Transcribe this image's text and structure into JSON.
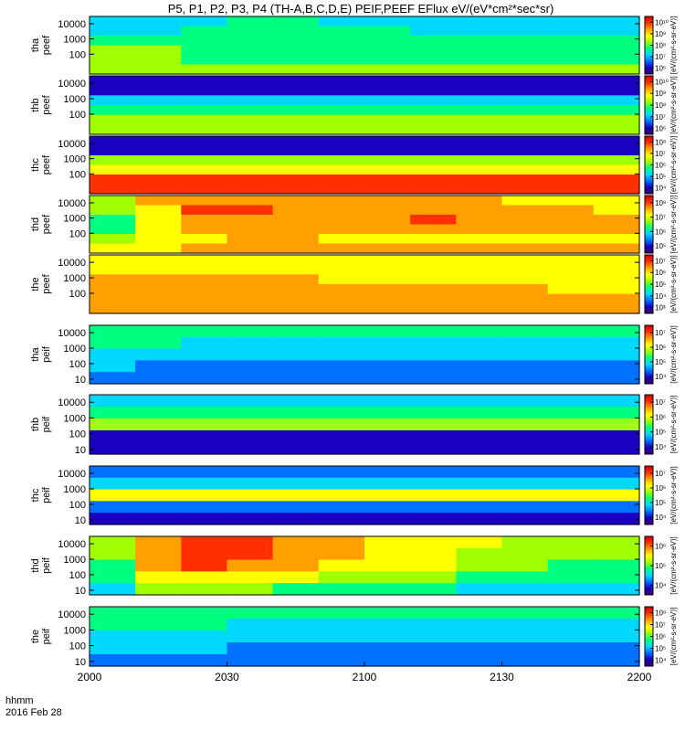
{
  "title": "P5, P1, P2, P3, P4 (TH-A,B,C,D,E) PEIF,PEEF EFlux eV/(eV*cm²*sec*sr)",
  "footer": {
    "time_label": "hhmm",
    "date_label": "2016 Feb 28"
  },
  "chart_data": [
    {
      "type": "heatmap",
      "ylabel": [
        "tha",
        "peef"
      ],
      "ylim": [
        5,
        30000
      ],
      "y_scale": "log",
      "yticks": [
        "100",
        "1000",
        "10000"
      ],
      "cbar_ticks": [
        "10⁶",
        "10⁷",
        "10⁸",
        "10⁹",
        "10¹⁰"
      ],
      "cbar_label": "[eV/(cm²-s-sr-eV)]",
      "data": [
        [
          0.3,
          0.34,
          0.38,
          0.4,
          0.4,
          0.38,
          0.36,
          0.35,
          0.34,
          0.33,
          0.32,
          0.31
        ],
        [
          0.36,
          0.38,
          0.4,
          0.42,
          0.44,
          0.42,
          0.4,
          0.38,
          0.36,
          0.35,
          0.34,
          0.33
        ],
        [
          0.48,
          0.46,
          0.44,
          0.44,
          0.45,
          0.44,
          0.43,
          0.42,
          0.41,
          0.4,
          0.4,
          0.39
        ],
        [
          0.52,
          0.5,
          0.48,
          0.47,
          0.47,
          0.46,
          0.45,
          0.44,
          0.43,
          0.43,
          0.42,
          0.42
        ],
        [
          0.52,
          0.5,
          0.48,
          0.48,
          0.48,
          0.47,
          0.46,
          0.46,
          0.45,
          0.45,
          0.44,
          0.44
        ],
        [
          0.56,
          0.55,
          0.54,
          0.54,
          0.54,
          0.53,
          0.52,
          0.52,
          0.51,
          0.51,
          0.5,
          0.5
        ]
      ]
    },
    {
      "type": "heatmap",
      "ylabel": [
        "thb",
        "peef"
      ],
      "ylim": [
        5,
        30000
      ],
      "y_scale": "log",
      "yticks": [
        "100",
        "1000",
        "10000"
      ],
      "cbar_ticks": [
        "10⁶",
        "10⁷",
        "10⁸",
        "10⁹",
        "10¹⁰"
      ],
      "cbar_label": "[eV/(cm²-s-sr-eV)]",
      "data": [
        [
          0.08,
          0.08,
          0.08,
          0.08,
          0.08,
          0.08,
          0.08,
          0.08,
          0.08,
          0.08,
          0.08,
          0.08
        ],
        [
          0.1,
          0.1,
          0.1,
          0.1,
          0.1,
          0.1,
          0.1,
          0.1,
          0.1,
          0.1,
          0.1,
          0.1
        ],
        [
          0.36,
          0.36,
          0.36,
          0.36,
          0.36,
          0.36,
          0.36,
          0.36,
          0.36,
          0.36,
          0.36,
          0.36
        ],
        [
          0.45,
          0.45,
          0.45,
          0.45,
          0.45,
          0.45,
          0.45,
          0.45,
          0.45,
          0.45,
          0.45,
          0.45
        ],
        [
          0.5,
          0.5,
          0.5,
          0.5,
          0.5,
          0.5,
          0.5,
          0.5,
          0.5,
          0.5,
          0.5,
          0.5
        ],
        [
          0.6,
          0.6,
          0.6,
          0.6,
          0.6,
          0.6,
          0.6,
          0.6,
          0.6,
          0.6,
          0.6,
          0.6
        ]
      ]
    },
    {
      "type": "heatmap",
      "ylabel": [
        "thc",
        "peef"
      ],
      "ylim": [
        5,
        30000
      ],
      "y_scale": "log",
      "yticks": [
        "100",
        "1000",
        "10000"
      ],
      "cbar_ticks": [
        "10⁴",
        "10⁵",
        "10⁶",
        "10⁷",
        "10⁸"
      ],
      "cbar_label": "[eV/(cm²-s-sr-eV)]",
      "data": [
        [
          0.12,
          0.12,
          0.12,
          0.12,
          0.12,
          0.12,
          0.12,
          0.12,
          0.12,
          0.12,
          0.12,
          0.12
        ],
        [
          0.14,
          0.14,
          0.14,
          0.14,
          0.14,
          0.14,
          0.14,
          0.14,
          0.14,
          0.14,
          0.14,
          0.14
        ],
        [
          0.5,
          0.5,
          0.5,
          0.5,
          0.5,
          0.5,
          0.5,
          0.5,
          0.5,
          0.5,
          0.5,
          0.5
        ],
        [
          0.72,
          0.72,
          0.72,
          0.72,
          0.72,
          0.72,
          0.72,
          0.72,
          0.72,
          0.72,
          0.72,
          0.72
        ],
        [
          0.86,
          0.86,
          0.86,
          0.86,
          0.86,
          0.86,
          0.86,
          0.86,
          0.86,
          0.86,
          0.86,
          0.86
        ],
        [
          0.93,
          0.93,
          0.93,
          0.93,
          0.93,
          0.93,
          0.93,
          0.93,
          0.93,
          0.93,
          0.93,
          0.93
        ]
      ]
    },
    {
      "type": "heatmap",
      "ylabel": [
        "thd",
        "peef"
      ],
      "ylim": [
        5,
        30000
      ],
      "y_scale": "log",
      "yticks": [
        "100",
        "1000",
        "10000"
      ],
      "cbar_ticks": [
        "10⁵",
        "10⁶",
        "10⁷",
        "10⁸"
      ],
      "cbar_label": "[eV/(cm²-s-sr-eV)]",
      "data": [
        [
          0.6,
          0.75,
          0.82,
          0.82,
          0.8,
          0.78,
          0.76,
          0.74,
          0.73,
          0.72,
          0.71,
          0.7
        ],
        [
          0.5,
          0.72,
          0.84,
          0.85,
          0.82,
          0.79,
          0.8,
          0.82,
          0.77,
          0.74,
          0.73,
          0.72
        ],
        [
          0.45,
          0.7,
          0.82,
          0.82,
          0.8,
          0.78,
          0.82,
          0.84,
          0.78,
          0.75,
          0.74,
          0.73
        ],
        [
          0.48,
          0.66,
          0.78,
          0.78,
          0.76,
          0.75,
          0.76,
          0.77,
          0.75,
          0.74,
          0.73,
          0.73
        ],
        [
          0.55,
          0.62,
          0.72,
          0.74,
          0.73,
          0.72,
          0.72,
          0.72,
          0.72,
          0.71,
          0.71,
          0.71
        ],
        [
          0.68,
          0.72,
          0.76,
          0.77,
          0.77,
          0.76,
          0.76,
          0.76,
          0.76,
          0.76,
          0.76,
          0.76
        ]
      ]
    },
    {
      "type": "heatmap",
      "ylabel": [
        "the",
        "peef"
      ],
      "ylim": [
        5,
        30000
      ],
      "y_scale": "log",
      "yticks": [
        "100",
        "1000",
        "10000"
      ],
      "cbar_ticks": [
        "10³",
        "10⁴",
        "10⁵",
        "10⁶",
        "10⁷"
      ],
      "cbar_label": "[eV/(cm²-s-sr-eV)]",
      "data": [
        [
          0.7,
          0.7,
          0.7,
          0.69,
          0.69,
          0.68,
          0.68,
          0.68,
          0.67,
          0.67,
          0.67,
          0.66
        ],
        [
          0.72,
          0.72,
          0.72,
          0.71,
          0.71,
          0.71,
          0.7,
          0.7,
          0.7,
          0.69,
          0.69,
          0.69
        ],
        [
          0.74,
          0.74,
          0.73,
          0.73,
          0.73,
          0.72,
          0.72,
          0.72,
          0.71,
          0.71,
          0.71,
          0.71
        ],
        [
          0.74,
          0.74,
          0.74,
          0.74,
          0.75,
          0.76,
          0.74,
          0.73,
          0.73,
          0.73,
          0.72,
          0.72
        ],
        [
          0.78,
          0.78,
          0.78,
          0.78,
          0.78,
          0.78,
          0.78,
          0.78,
          0.78,
          0.78,
          0.78,
          0.78
        ],
        [
          0.8,
          0.8,
          0.8,
          0.8,
          0.8,
          0.8,
          0.8,
          0.8,
          0.8,
          0.8,
          0.8,
          0.8
        ]
      ]
    },
    {
      "type": "heatmap",
      "ylabel": [
        "tha",
        "peif"
      ],
      "ylim": [
        5,
        30000
      ],
      "y_scale": "log",
      "yticks": [
        "10",
        "100",
        "1000",
        "10000"
      ],
      "cbar_ticks": [
        "10⁴",
        "10⁵",
        "10⁶",
        "10⁷"
      ],
      "cbar_label": "[eV/(cm²-s-sr-eV)]",
      "data": [
        [
          0.48,
          0.46,
          0.44,
          0.43,
          0.42,
          0.42,
          0.41,
          0.41,
          0.4,
          0.4,
          0.4,
          0.4
        ],
        [
          0.42,
          0.4,
          0.38,
          0.37,
          0.36,
          0.36,
          0.36,
          0.36,
          0.35,
          0.35,
          0.35,
          0.35
        ],
        [
          0.34,
          0.32,
          0.3,
          0.3,
          0.3,
          0.3,
          0.3,
          0.3,
          0.3,
          0.3,
          0.3,
          0.3
        ],
        [
          0.28,
          0.26,
          0.26,
          0.25,
          0.25,
          0.25,
          0.25,
          0.25,
          0.25,
          0.25,
          0.25,
          0.25
        ],
        [
          0.22,
          0.2,
          0.2,
          0.2,
          0.2,
          0.2,
          0.2,
          0.2,
          0.2,
          0.2,
          0.2,
          0.2
        ]
      ]
    },
    {
      "type": "heatmap",
      "ylabel": [
        "thb",
        "peif"
      ],
      "ylim": [
        5,
        30000
      ],
      "y_scale": "log",
      "yticks": [
        "10",
        "100",
        "1000",
        "10000"
      ],
      "cbar_ticks": [
        "10⁴",
        "10⁵",
        "10⁶",
        "10⁷"
      ],
      "cbar_label": "[eV/(cm²-s-sr-eV)]",
      "data": [
        [
          0.35,
          0.35,
          0.35,
          0.35,
          0.35,
          0.35,
          0.35,
          0.35,
          0.35,
          0.35,
          0.35,
          0.35
        ],
        [
          0.45,
          0.45,
          0.45,
          0.45,
          0.45,
          0.45,
          0.45,
          0.45,
          0.45,
          0.45,
          0.45,
          0.45
        ],
        [
          0.55,
          0.55,
          0.55,
          0.55,
          0.55,
          0.55,
          0.55,
          0.55,
          0.55,
          0.55,
          0.55,
          0.55
        ],
        [
          0.15,
          0.15,
          0.15,
          0.15,
          0.15,
          0.15,
          0.15,
          0.15,
          0.15,
          0.15,
          0.15,
          0.15
        ],
        [
          0.12,
          0.12,
          0.12,
          0.12,
          0.12,
          0.12,
          0.12,
          0.12,
          0.12,
          0.12,
          0.12,
          0.12
        ]
      ]
    },
    {
      "type": "heatmap",
      "ylabel": [
        "thc",
        "peif"
      ],
      "ylim": [
        5,
        30000
      ],
      "y_scale": "log",
      "yticks": [
        "10",
        "100",
        "1000",
        "10000"
      ],
      "cbar_ticks": [
        "10⁴",
        "10⁵",
        "10⁶",
        "10⁷"
      ],
      "cbar_label": "[eV/(cm²-s-sr-eV)]",
      "data": [
        [
          0.2,
          0.2,
          0.2,
          0.2,
          0.2,
          0.2,
          0.2,
          0.2,
          0.2,
          0.2,
          0.2,
          0.2
        ],
        [
          0.3,
          0.3,
          0.3,
          0.3,
          0.3,
          0.3,
          0.3,
          0.3,
          0.3,
          0.3,
          0.3,
          0.3
        ],
        [
          0.65,
          0.65,
          0.65,
          0.65,
          0.65,
          0.65,
          0.65,
          0.65,
          0.65,
          0.65,
          0.65,
          0.65
        ],
        [
          0.2,
          0.2,
          0.2,
          0.2,
          0.2,
          0.2,
          0.2,
          0.2,
          0.2,
          0.2,
          0.2,
          0.2
        ],
        [
          0.15,
          0.15,
          0.15,
          0.15,
          0.15,
          0.15,
          0.15,
          0.15,
          0.15,
          0.15,
          0.15,
          0.15
        ]
      ]
    },
    {
      "type": "heatmap",
      "ylabel": [
        "thd",
        "peif"
      ],
      "ylim": [
        5,
        30000
      ],
      "y_scale": "log",
      "yticks": [
        "10",
        "100",
        "1000",
        "10000"
      ],
      "cbar_ticks": [
        "10⁴",
        "10⁵",
        "10⁶"
      ],
      "cbar_label": "[eV/(cm²-s-sr-eV)]",
      "data": [
        [
          0.55,
          0.8,
          0.85,
          0.84,
          0.8,
          0.76,
          0.72,
          0.68,
          0.62,
          0.58,
          0.55,
          0.55
        ],
        [
          0.5,
          0.82,
          0.9,
          0.88,
          0.82,
          0.76,
          0.72,
          0.68,
          0.6,
          0.55,
          0.52,
          0.52
        ],
        [
          0.45,
          0.75,
          0.84,
          0.82,
          0.78,
          0.72,
          0.68,
          0.64,
          0.56,
          0.5,
          0.48,
          0.48
        ],
        [
          0.4,
          0.62,
          0.7,
          0.68,
          0.64,
          0.6,
          0.56,
          0.52,
          0.46,
          0.42,
          0.4,
          0.4
        ],
        [
          0.38,
          0.5,
          0.55,
          0.52,
          0.48,
          0.45,
          0.42,
          0.4,
          0.38,
          0.36,
          0.35,
          0.35
        ]
      ]
    },
    {
      "type": "heatmap",
      "ylabel": [
        "the",
        "peif"
      ],
      "ylim": [
        5,
        30000
      ],
      "y_scale": "log",
      "yticks": [
        "10",
        "100",
        "1000",
        "10000"
      ],
      "cbar_ticks": [
        "10⁴",
        "10⁵",
        "10⁶",
        "10⁷",
        "10⁸"
      ],
      "cbar_label": "[eV/(cm²-s-sr-eV)]",
      "data": [
        [
          0.44,
          0.44,
          0.43,
          0.43,
          0.42,
          0.42,
          0.42,
          0.41,
          0.41,
          0.41,
          0.4,
          0.4
        ],
        [
          0.4,
          0.4,
          0.39,
          0.38,
          0.38,
          0.37,
          0.37,
          0.37,
          0.36,
          0.36,
          0.36,
          0.36
        ],
        [
          0.35,
          0.34,
          0.33,
          0.32,
          0.32,
          0.31,
          0.31,
          0.31,
          0.3,
          0.3,
          0.3,
          0.3
        ],
        [
          0.3,
          0.29,
          0.28,
          0.27,
          0.27,
          0.26,
          0.26,
          0.26,
          0.26,
          0.26,
          0.26,
          0.26
        ],
        [
          0.26,
          0.25,
          0.24,
          0.24,
          0.23,
          0.23,
          0.23,
          0.23,
          0.23,
          0.23,
          0.23,
          0.23
        ]
      ]
    }
  ],
  "xaxis": {
    "ticks": [
      "2000",
      "2030",
      "2100",
      "2130",
      "2200"
    ]
  },
  "colorscale": [
    "#3a0060",
    "#1a00c0",
    "#0070ff",
    "#00d8ff",
    "#00ff80",
    "#a0ff00",
    "#ffff00",
    "#ffa000",
    "#ff3000",
    "#d00000"
  ]
}
